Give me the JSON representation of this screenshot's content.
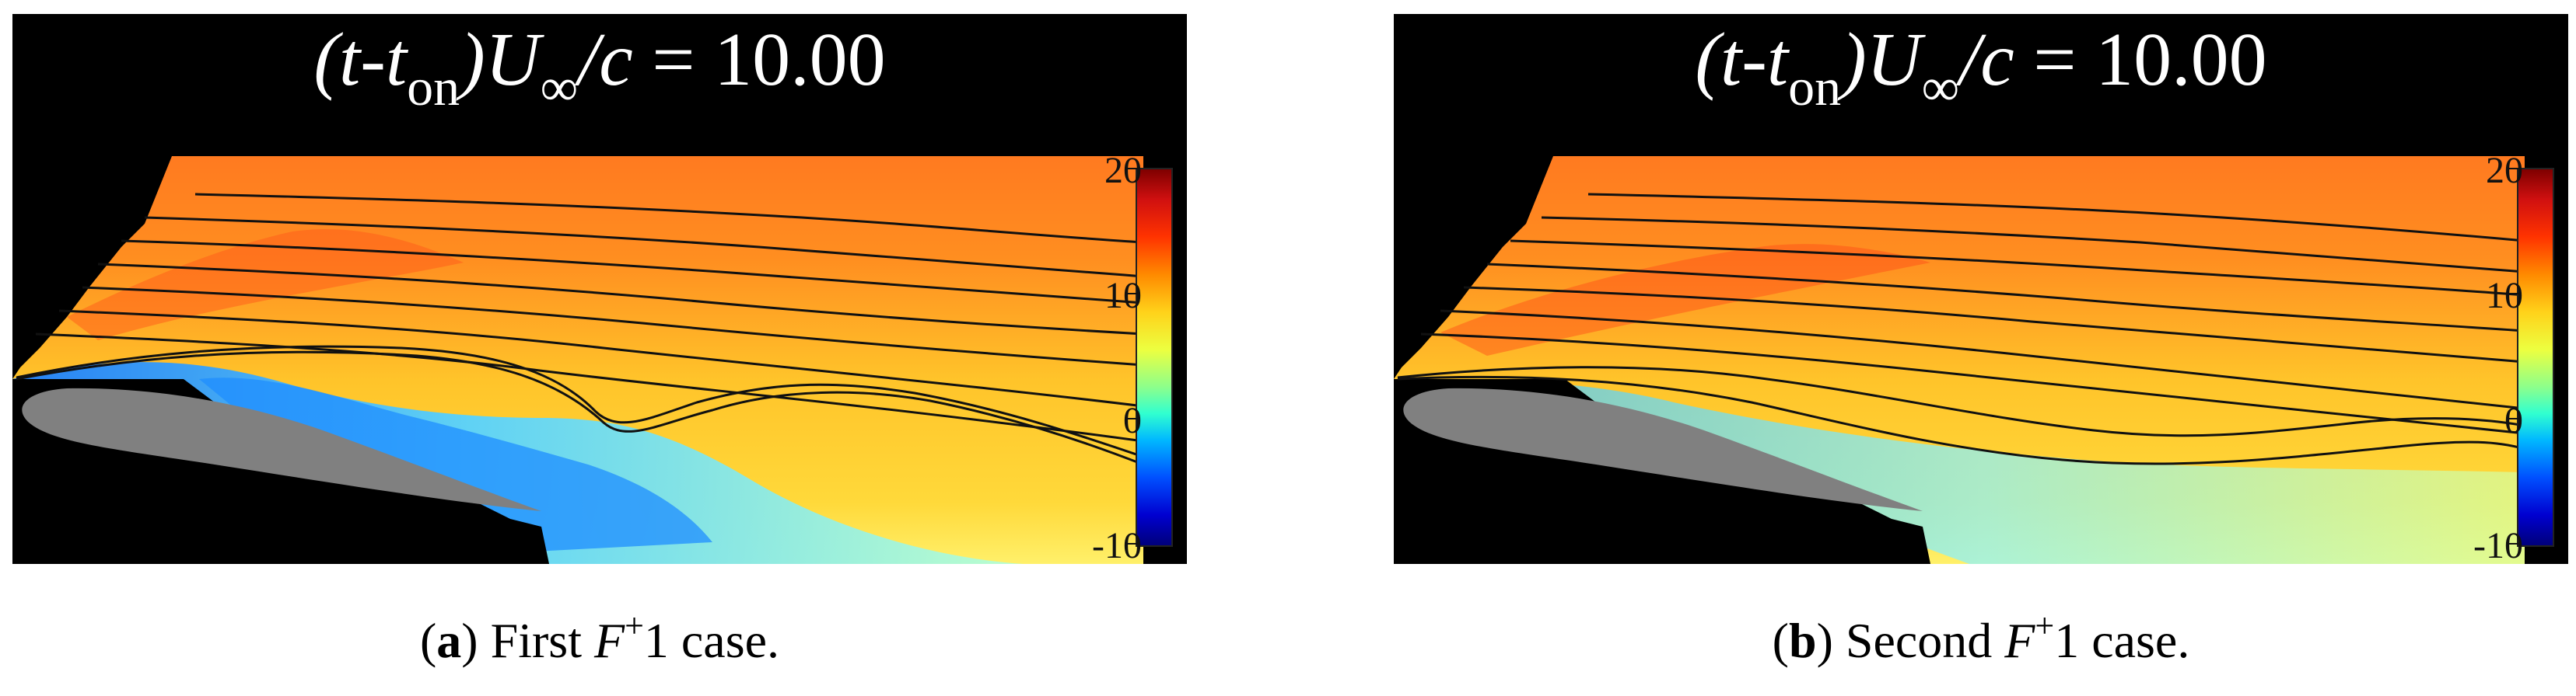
{
  "panels": [
    {
      "id": "a",
      "title": {
        "t": "(t-t",
        "sub": "on",
        "u": ")U",
        "sub2": "∞",
        "rest": "/c",
        "eq": " = 10.00"
      },
      "colorbar": {
        "ticks": [
          "20",
          "10",
          "0",
          "-10"
        ]
      },
      "caption": {
        "open": "(",
        "label": "a",
        "close": ")",
        "text_before": " First ",
        "math": "F",
        "sup": "+",
        "text_after": "1 case."
      }
    },
    {
      "id": "b",
      "title": {
        "t": "(t-t",
        "sub": "on",
        "u": ")U",
        "sub2": "∞",
        "rest": "/c",
        "eq": " = 10.00"
      },
      "colorbar": {
        "ticks": [
          "20",
          "10",
          "0",
          "-10"
        ]
      },
      "caption": {
        "open": "(",
        "label": "b",
        "close": ")",
        "text_before": " Second ",
        "math": "F",
        "sup": "+",
        "text_after": "1 case."
      }
    }
  ],
  "colors": {
    "background_black": "#000000",
    "airfoil_gray": "#808080",
    "streamline": "#111111",
    "field_warm": "#ffae2a",
    "field_hot": "#ff5a1a",
    "field_cold": "#5fd8ff",
    "field_colder": "#1f8dff"
  }
}
